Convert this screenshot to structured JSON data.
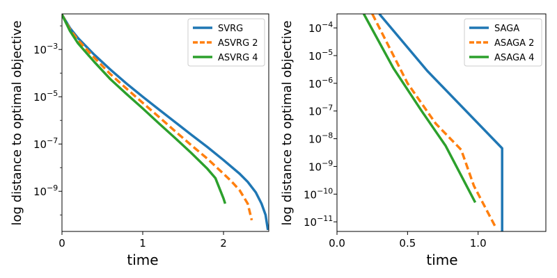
{
  "chart_data": [
    {
      "type": "line",
      "scale_y": "log",
      "xlabel": "time",
      "ylabel": "log distance to optimal objective",
      "xlim": [
        0,
        2.56
      ],
      "ylim": [
        2e-11,
        0.032
      ],
      "x_ticks": [
        0,
        1,
        2
      ],
      "x_tick_labels": [
        "0",
        "1",
        "2"
      ],
      "y_ticks": [
        1e-09,
        1e-07,
        1e-05,
        0.001
      ],
      "y_tick_labels": [
        "10",
        "10",
        "10",
        "10"
      ],
      "y_tick_exponents": [
        "−9",
        "−7",
        "−5",
        "−3"
      ],
      "minor_y_ticks": [
        1e-10,
        1e-08,
        1e-06,
        0.0001,
        0.01
      ],
      "legend_position": "upper right",
      "series": [
        {
          "name": "SVRG",
          "color": "#1f77b4",
          "dash": "solid",
          "x": [
            0,
            0.1,
            0.2,
            0.4,
            0.6,
            0.8,
            1.0,
            1.2,
            1.4,
            1.6,
            1.8,
            2.0,
            2.2,
            2.3,
            2.4,
            2.47,
            2.52,
            2.55
          ],
          "y": [
            0.03,
            0.008,
            0.003,
            0.0006,
            0.00014,
            3.6e-05,
            1e-05,
            2.9e-06,
            8.5e-07,
            2.5e-07,
            7.5e-08,
            2.1e-08,
            5.5e-09,
            2.5e-09,
            9e-10,
            3e-10,
            1e-10,
            2.3e-11
          ]
        },
        {
          "name": "ASVRG 2",
          "color": "#ff7f0e",
          "dash": "dashed",
          "x": [
            0,
            0.1,
            0.2,
            0.4,
            0.6,
            0.8,
            1.0,
            1.2,
            1.4,
            1.6,
            1.8,
            2.0,
            2.1,
            2.2,
            2.3,
            2.35
          ],
          "y": [
            0.03,
            0.007,
            0.0025,
            0.00045,
            9e-05,
            2.2e-05,
            5.5e-06,
            1.4e-06,
            3.5e-07,
            9e-08,
            2.4e-08,
            5.5e-09,
            2.6e-09,
            1.1e-09,
            3e-10,
            6e-11
          ]
        },
        {
          "name": "ASVRG 4",
          "color": "#2ca02c",
          "dash": "solid",
          "x": [
            0,
            0.1,
            0.2,
            0.4,
            0.6,
            0.8,
            1.0,
            1.2,
            1.4,
            1.6,
            1.8,
            1.9,
            2.0,
            2.02
          ],
          "y": [
            0.03,
            0.006,
            0.0018,
            0.0003,
            5.5e-05,
            1.3e-05,
            3.2e-06,
            7.5e-07,
            1.8e-07,
            4.2e-08,
            9e-09,
            3.6e-09,
            5e-10,
            3e-10
          ]
        }
      ]
    },
    {
      "type": "line",
      "scale_y": "log",
      "xlabel": "time",
      "ylabel": "log distance to optimal objective",
      "xlim": [
        0,
        1.48
      ],
      "ylim": [
        4.5e-12,
        0.00032
      ],
      "x_ticks": [
        0,
        0.5,
        1.0
      ],
      "x_tick_labels": [
        "0.0",
        "0.5",
        "1.0"
      ],
      "y_ticks": [
        1e-11,
        1e-10,
        1e-09,
        1e-08,
        1e-07,
        1e-06,
        1e-05,
        0.0001
      ],
      "y_tick_labels": [
        "10",
        "10",
        "10",
        "10",
        "10",
        "10",
        "10",
        "10"
      ],
      "y_tick_exponents": [
        "−11",
        "−10",
        "−9",
        "−8",
        "−7",
        "−6",
        "−5",
        "−4"
      ],
      "minor_y_ticks": [],
      "legend_position": "upper right",
      "series": [
        {
          "name": "SAGA",
          "color": "#1f77b4",
          "dash": "solid",
          "x": [
            0.3,
            0.64,
            1.17,
            1.17
          ],
          "y": [
            0.00032,
            2.8e-06,
            4.5e-09,
            4.5e-12
          ]
        },
        {
          "name": "ASAGA 2",
          "color": "#ff7f0e",
          "dash": "dashed",
          "x": [
            0.25,
            0.5,
            0.7,
            0.88,
            0.97,
            1.12
          ],
          "y": [
            0.00032,
            1e-06,
            3.5e-08,
            4e-09,
            2e-10,
            7e-12
          ]
        },
        {
          "name": "ASAGA 4",
          "color": "#2ca02c",
          "dash": "solid",
          "x": [
            0.19,
            0.4,
            0.6,
            0.77,
            0.98
          ],
          "y": [
            0.00032,
            3.5e-06,
            1e-07,
            5.5e-09,
            5e-11
          ]
        }
      ]
    }
  ]
}
